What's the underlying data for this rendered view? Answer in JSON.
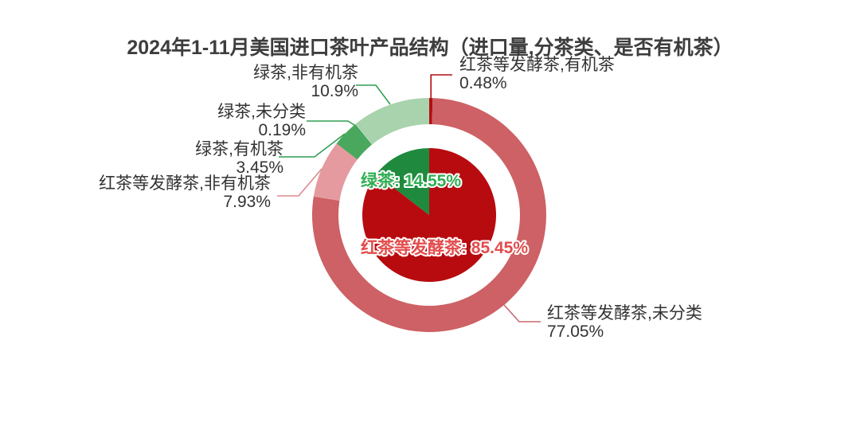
{
  "title": {
    "text": "2024年1-11月美国进口茶叶产品结构（进口量,分茶类、是否有机茶）",
    "color": "#3d3d3d"
  },
  "chart_data": {
    "type": "pie",
    "subtype": "nested-donut",
    "title": "2024年1-11月美国进口茶叶产品结构（进口量,分茶类、是否有机茶）",
    "unit": "%",
    "direction": "clockwise",
    "start_angle_deg": 0,
    "legend": "none",
    "rings": [
      {
        "name": "inner-pie-by-tea-type",
        "radius_px": [
          0,
          84
        ],
        "data": [
          {
            "name": "红茶等发酵茶",
            "value": 85.45,
            "label": "红茶等发酵茶: 85.45%",
            "color": "#b70b10",
            "label_color": "#e34c4c"
          },
          {
            "name": "绿茶",
            "value": 14.55,
            "label": "绿茶: 14.55%",
            "color": "#1f8a3d",
            "label_color": "#2fae52"
          }
        ]
      },
      {
        "name": "outer-ring-by-tea-type-and-organic",
        "radius_px": [
          114,
          147
        ],
        "data": [
          {
            "name": "红茶等发酵茶,有机茶",
            "value": 0.48,
            "pct": "0.48%",
            "color": "#b50d12",
            "leader_color": "#b50d12"
          },
          {
            "name": "红茶等发酵茶,未分类",
            "value": 77.05,
            "pct": "77.05%",
            "color": "#cd6165",
            "leader_color": "#c96a70"
          },
          {
            "name": "红茶等发酵茶,非有机茶",
            "value": 7.93,
            "pct": "7.93%",
            "color": "#e59aa0",
            "leader_color": "#dd8890"
          },
          {
            "name": "绿茶,有机茶",
            "value": 3.45,
            "pct": "3.45%",
            "color": "#4aa85e",
            "leader_color": "#2e9e50"
          },
          {
            "name": "绿茶,未分类",
            "value": 0.19,
            "pct": "0.19%",
            "color": "#2e9e4f",
            "leader_color": "#2e9e50"
          },
          {
            "name": "绿茶,非有机茶",
            "value": 10.9,
            "pct": "10.9%",
            "color": "#a8d3ac",
            "leader_color": "#2e9e50"
          }
        ]
      }
    ]
  }
}
